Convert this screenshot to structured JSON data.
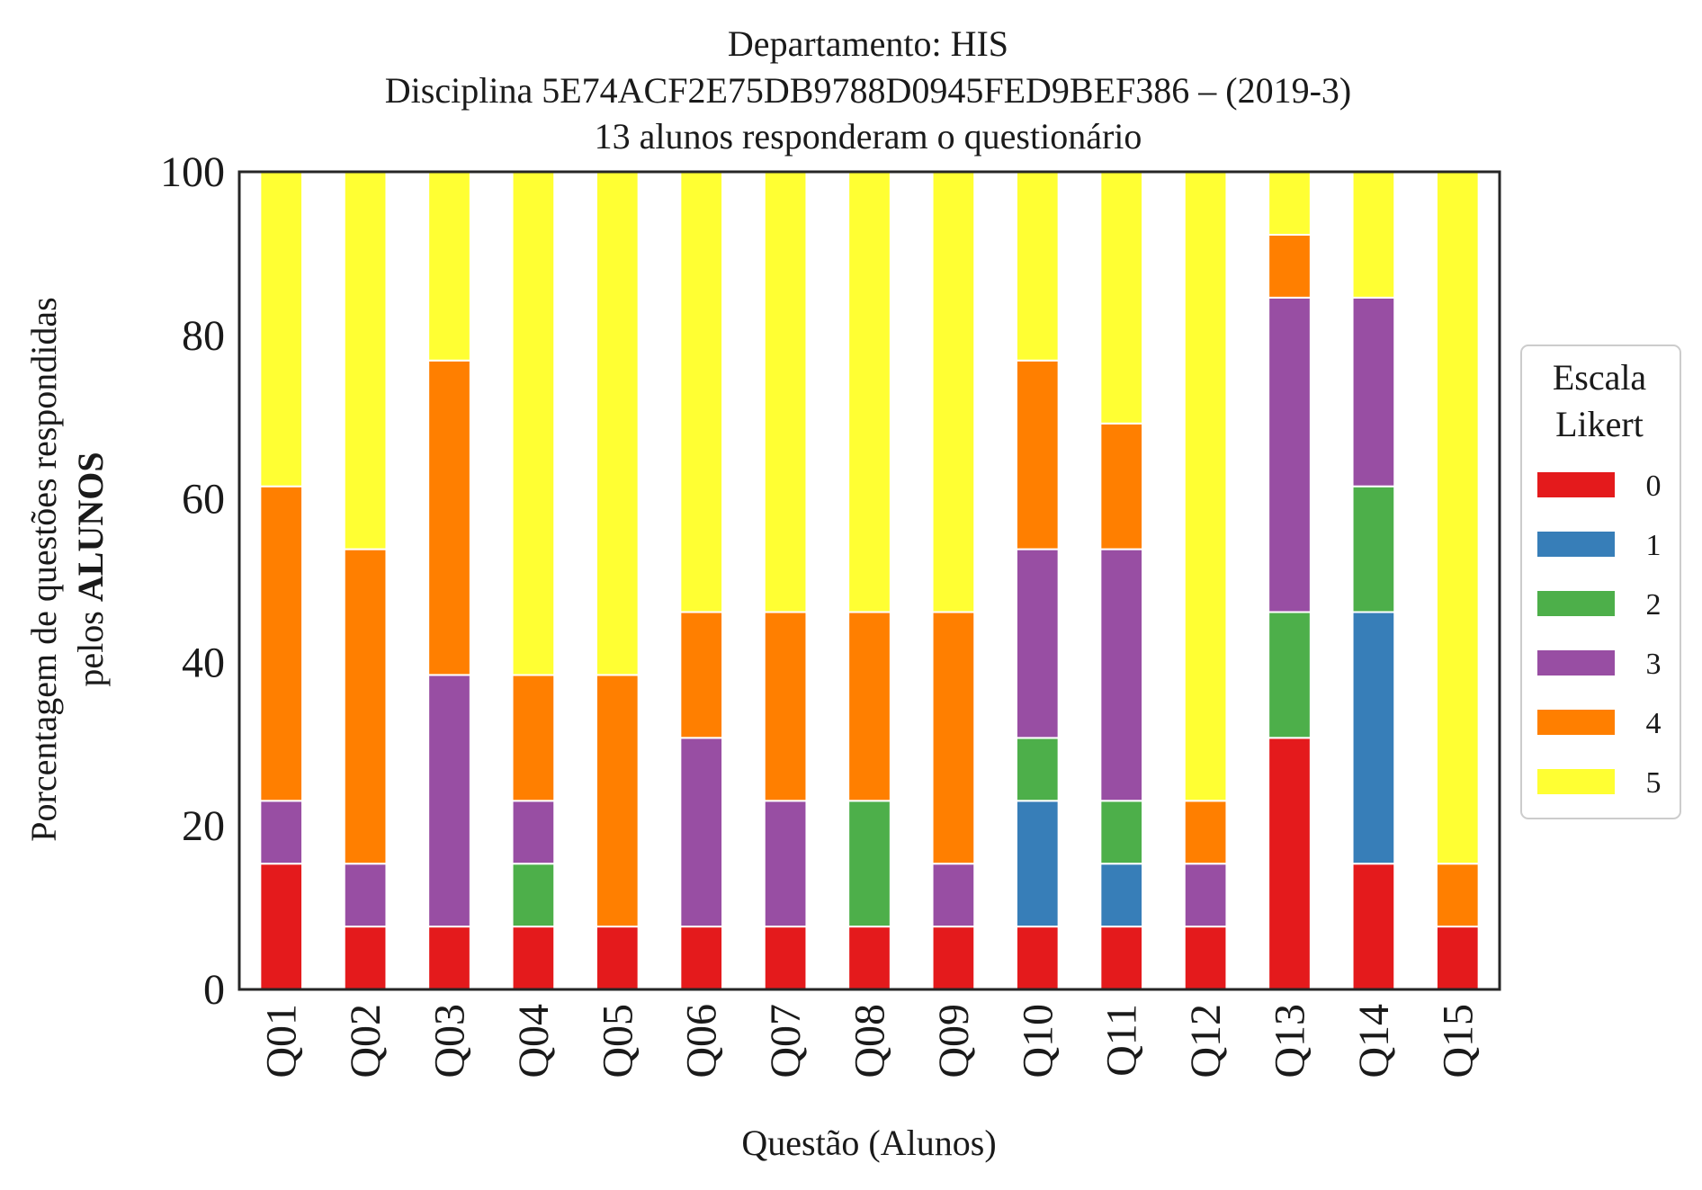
{
  "chart_data": {
    "type": "bar",
    "stacked": true,
    "title": [
      "Departamento: HIS",
      "Disciplina 5E74ACF2E75DB9788D0945FED9BEF386 – (2019-3)",
      "13 alunos responderam o questionário"
    ],
    "xlabel": "Questão (Alunos)",
    "ylabel_line1": "Porcentagem de questões respondidas",
    "ylabel_line2_prefix": "pelos ",
    "ylabel_line2_bold": "ALUNOS",
    "ylim": [
      0,
      100
    ],
    "yticks": [
      "0",
      "20",
      "40",
      "60",
      "80",
      "100"
    ],
    "grid": false,
    "legend": {
      "title": [
        "Escala",
        "Likert"
      ],
      "placement": "right-center"
    },
    "categories": [
      "Q01",
      "Q02",
      "Q03",
      "Q04",
      "Q05",
      "Q06",
      "Q07",
      "Q08",
      "Q09",
      "Q10",
      "Q11",
      "Q12",
      "Q13",
      "Q14",
      "Q15"
    ],
    "series": [
      {
        "name": "0",
        "color": "#e41a1c",
        "values": [
          15.38,
          7.69,
          7.69,
          7.69,
          7.69,
          7.69,
          7.69,
          7.69,
          7.69,
          7.69,
          7.69,
          7.69,
          30.77,
          15.38,
          7.69
        ]
      },
      {
        "name": "1",
        "color": "#377eb8",
        "values": [
          0,
          0,
          0,
          0,
          0,
          0,
          0,
          0,
          0,
          15.38,
          7.69,
          0,
          0,
          30.77,
          0
        ]
      },
      {
        "name": "2",
        "color": "#4daf4a",
        "values": [
          0,
          0,
          0,
          7.69,
          0,
          0,
          0,
          15.38,
          0,
          7.69,
          7.69,
          0,
          15.38,
          15.38,
          0
        ]
      },
      {
        "name": "3",
        "color": "#984ea3",
        "values": [
          7.69,
          7.69,
          30.77,
          7.69,
          0,
          23.08,
          15.38,
          0,
          7.69,
          23.08,
          30.77,
          7.69,
          38.46,
          23.08,
          0
        ]
      },
      {
        "name": "4",
        "color": "#ff7f00",
        "values": [
          38.46,
          38.46,
          38.46,
          15.38,
          30.77,
          15.38,
          23.08,
          23.08,
          30.77,
          23.08,
          15.38,
          7.69,
          7.69,
          0,
          7.69
        ]
      },
      {
        "name": "5",
        "color": "#ffff33",
        "values": [
          38.46,
          46.15,
          23.08,
          61.54,
          61.54,
          53.85,
          53.85,
          53.85,
          53.85,
          23.08,
          30.77,
          76.92,
          7.69,
          15.38,
          84.62
        ]
      }
    ]
  }
}
